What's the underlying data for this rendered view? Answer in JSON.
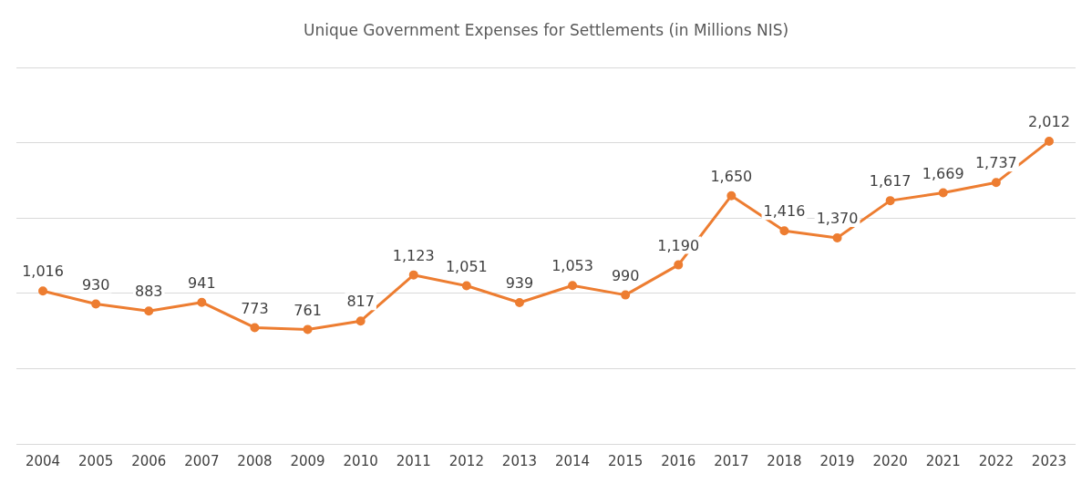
{
  "chart_data": {
    "type": "line",
    "title": "Unique Government Expenses for Settlements (in Millions NIS)",
    "categories": [
      "2004",
      "2005",
      "2006",
      "2007",
      "2008",
      "2009",
      "2010",
      "2011",
      "2012",
      "2013",
      "2014",
      "2015",
      "2016",
      "2017",
      "2018",
      "2019",
      "2020",
      "2021",
      "2022",
      "2023"
    ],
    "series": [
      {
        "color": "#ed7d31",
        "values": [
          1016,
          930,
          883,
          941,
          773,
          761,
          817,
          1123,
          1051,
          939,
          1053,
          990,
          1190,
          1650,
          1416,
          1370,
          1617,
          1669,
          1737,
          2012
        ],
        "value_labels": [
          "1,016",
          "930",
          "883",
          "941",
          "773",
          "761",
          "817",
          "1,123",
          "1,051",
          "939",
          "1,053",
          "990",
          "1,190",
          "1,650",
          "1,416",
          "1,370",
          "1,617",
          "1,669",
          "1,737",
          "2,012"
        ]
      }
    ],
    "ylim": [
      0,
      2500
    ],
    "yticks": [
      {
        "value": 0,
        "label": null
      },
      {
        "value": 500,
        "label": null
      },
      {
        "value": 1000,
        "label": null
      },
      {
        "value": 1500,
        "label": null
      },
      {
        "value": 2000,
        "label": null
      },
      {
        "value": 2500,
        "label": null
      }
    ],
    "tick_labels": "x",
    "grid": "y",
    "legend": false,
    "marker": "circle",
    "line_style": "solid"
  }
}
